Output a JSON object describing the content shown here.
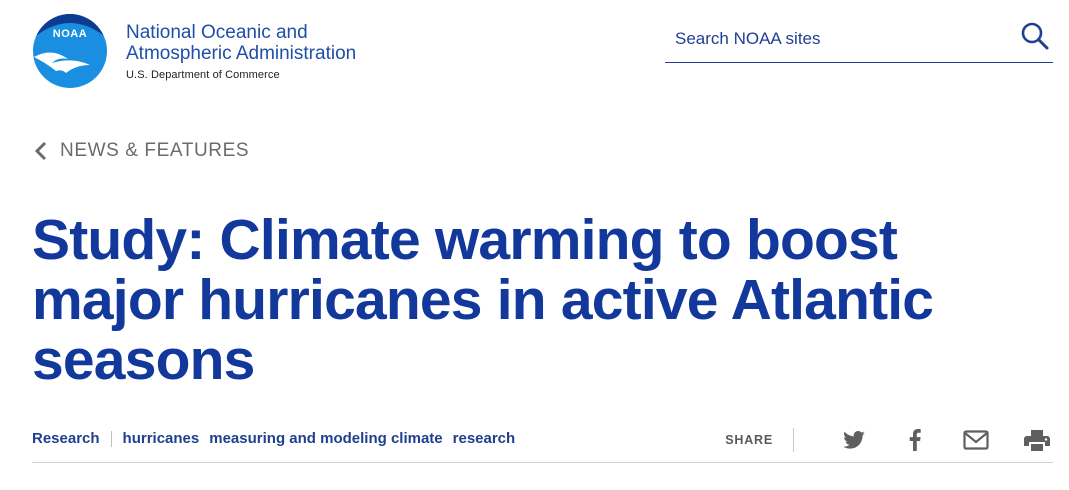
{
  "header": {
    "logo_text": "NOAA",
    "org_name_line1": "National Oceanic and",
    "org_name_line2": "Atmospheric Administration",
    "department": "U.S. Department of Commerce"
  },
  "search": {
    "placeholder": "Search NOAA sites",
    "value": "",
    "icon": "search-icon"
  },
  "breadcrumb": {
    "label": "NEWS & FEATURES",
    "icon": "chevron-left-icon"
  },
  "article": {
    "title": "Study: Climate warming to boost major hurricanes in active Atlantic seasons"
  },
  "tags": {
    "primary": "Research",
    "items": [
      "hurricanes",
      "measuring and modeling climate",
      "research"
    ]
  },
  "share": {
    "label": "SHARE",
    "icons": [
      "twitter-icon",
      "facebook-icon",
      "email-icon",
      "print-icon"
    ]
  },
  "colors": {
    "brand_blue": "#11389a",
    "link_blue": "#1f3f8f",
    "logo_blue": "#1a8ee0",
    "gray_text": "#6b6b6b",
    "icon_gray": "#5f5f5f"
  }
}
